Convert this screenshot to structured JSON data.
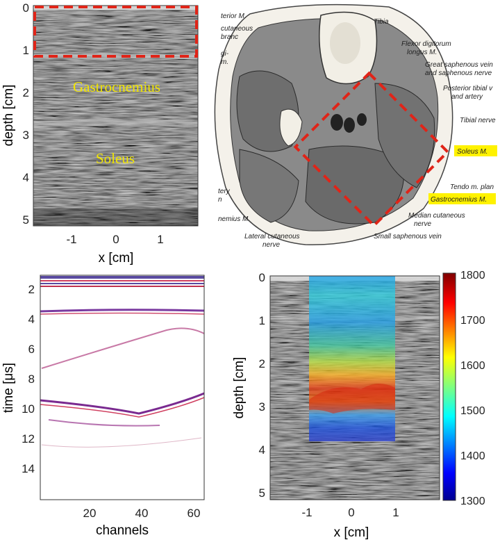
{
  "panels": {
    "ultrasound": {
      "ylabel": "depth [cm]",
      "xlabel": "x [cm]",
      "yticks": [
        "0",
        "1",
        "2",
        "3",
        "4",
        "5"
      ],
      "xticks": [
        "-1",
        "0",
        "1"
      ],
      "labels": {
        "upper": "Gastrocnemius",
        "lower": "Soleus"
      },
      "label_color": "#f2e600",
      "roi_color": "#e02418"
    },
    "anatomy": {
      "labels": [
        "terior M.",
        "cutaneous",
        "branc",
        "gi-",
        "m.",
        "Tibia",
        "Flexor digitorum",
        "longus M.",
        "Great saphenous vein",
        "and saphenous nerve",
        "Posterior tibial v",
        "and artery",
        "Tibial nerve",
        "Soleus M.",
        "Tendo m. plan",
        "Gastrocnemius M.",
        "Median cutaneous",
        "nerve",
        "Small saphenous vein",
        "Lateral cutaneous",
        "nerve",
        "nemius M.",
        "tery",
        "n"
      ],
      "highlight_color": "#fff200",
      "roi_color": "#e02418"
    },
    "rf": {
      "ylabel": "time [μs]",
      "xlabel": "channels",
      "yticks": [
        "2",
        "4",
        "6",
        "8",
        "10",
        "12",
        "14"
      ],
      "xticks": [
        "20",
        "40",
        "60"
      ]
    },
    "sos": {
      "ylabel": "depth [cm]",
      "xlabel": "x [cm]",
      "yticks": [
        "0",
        "1",
        "2",
        "3",
        "4",
        "5"
      ],
      "xticks": [
        "-1",
        "0",
        "1"
      ],
      "colorbar_ticks": [
        "1800",
        "1700",
        "1600",
        "1500",
        "1400",
        "1300"
      ]
    }
  }
}
